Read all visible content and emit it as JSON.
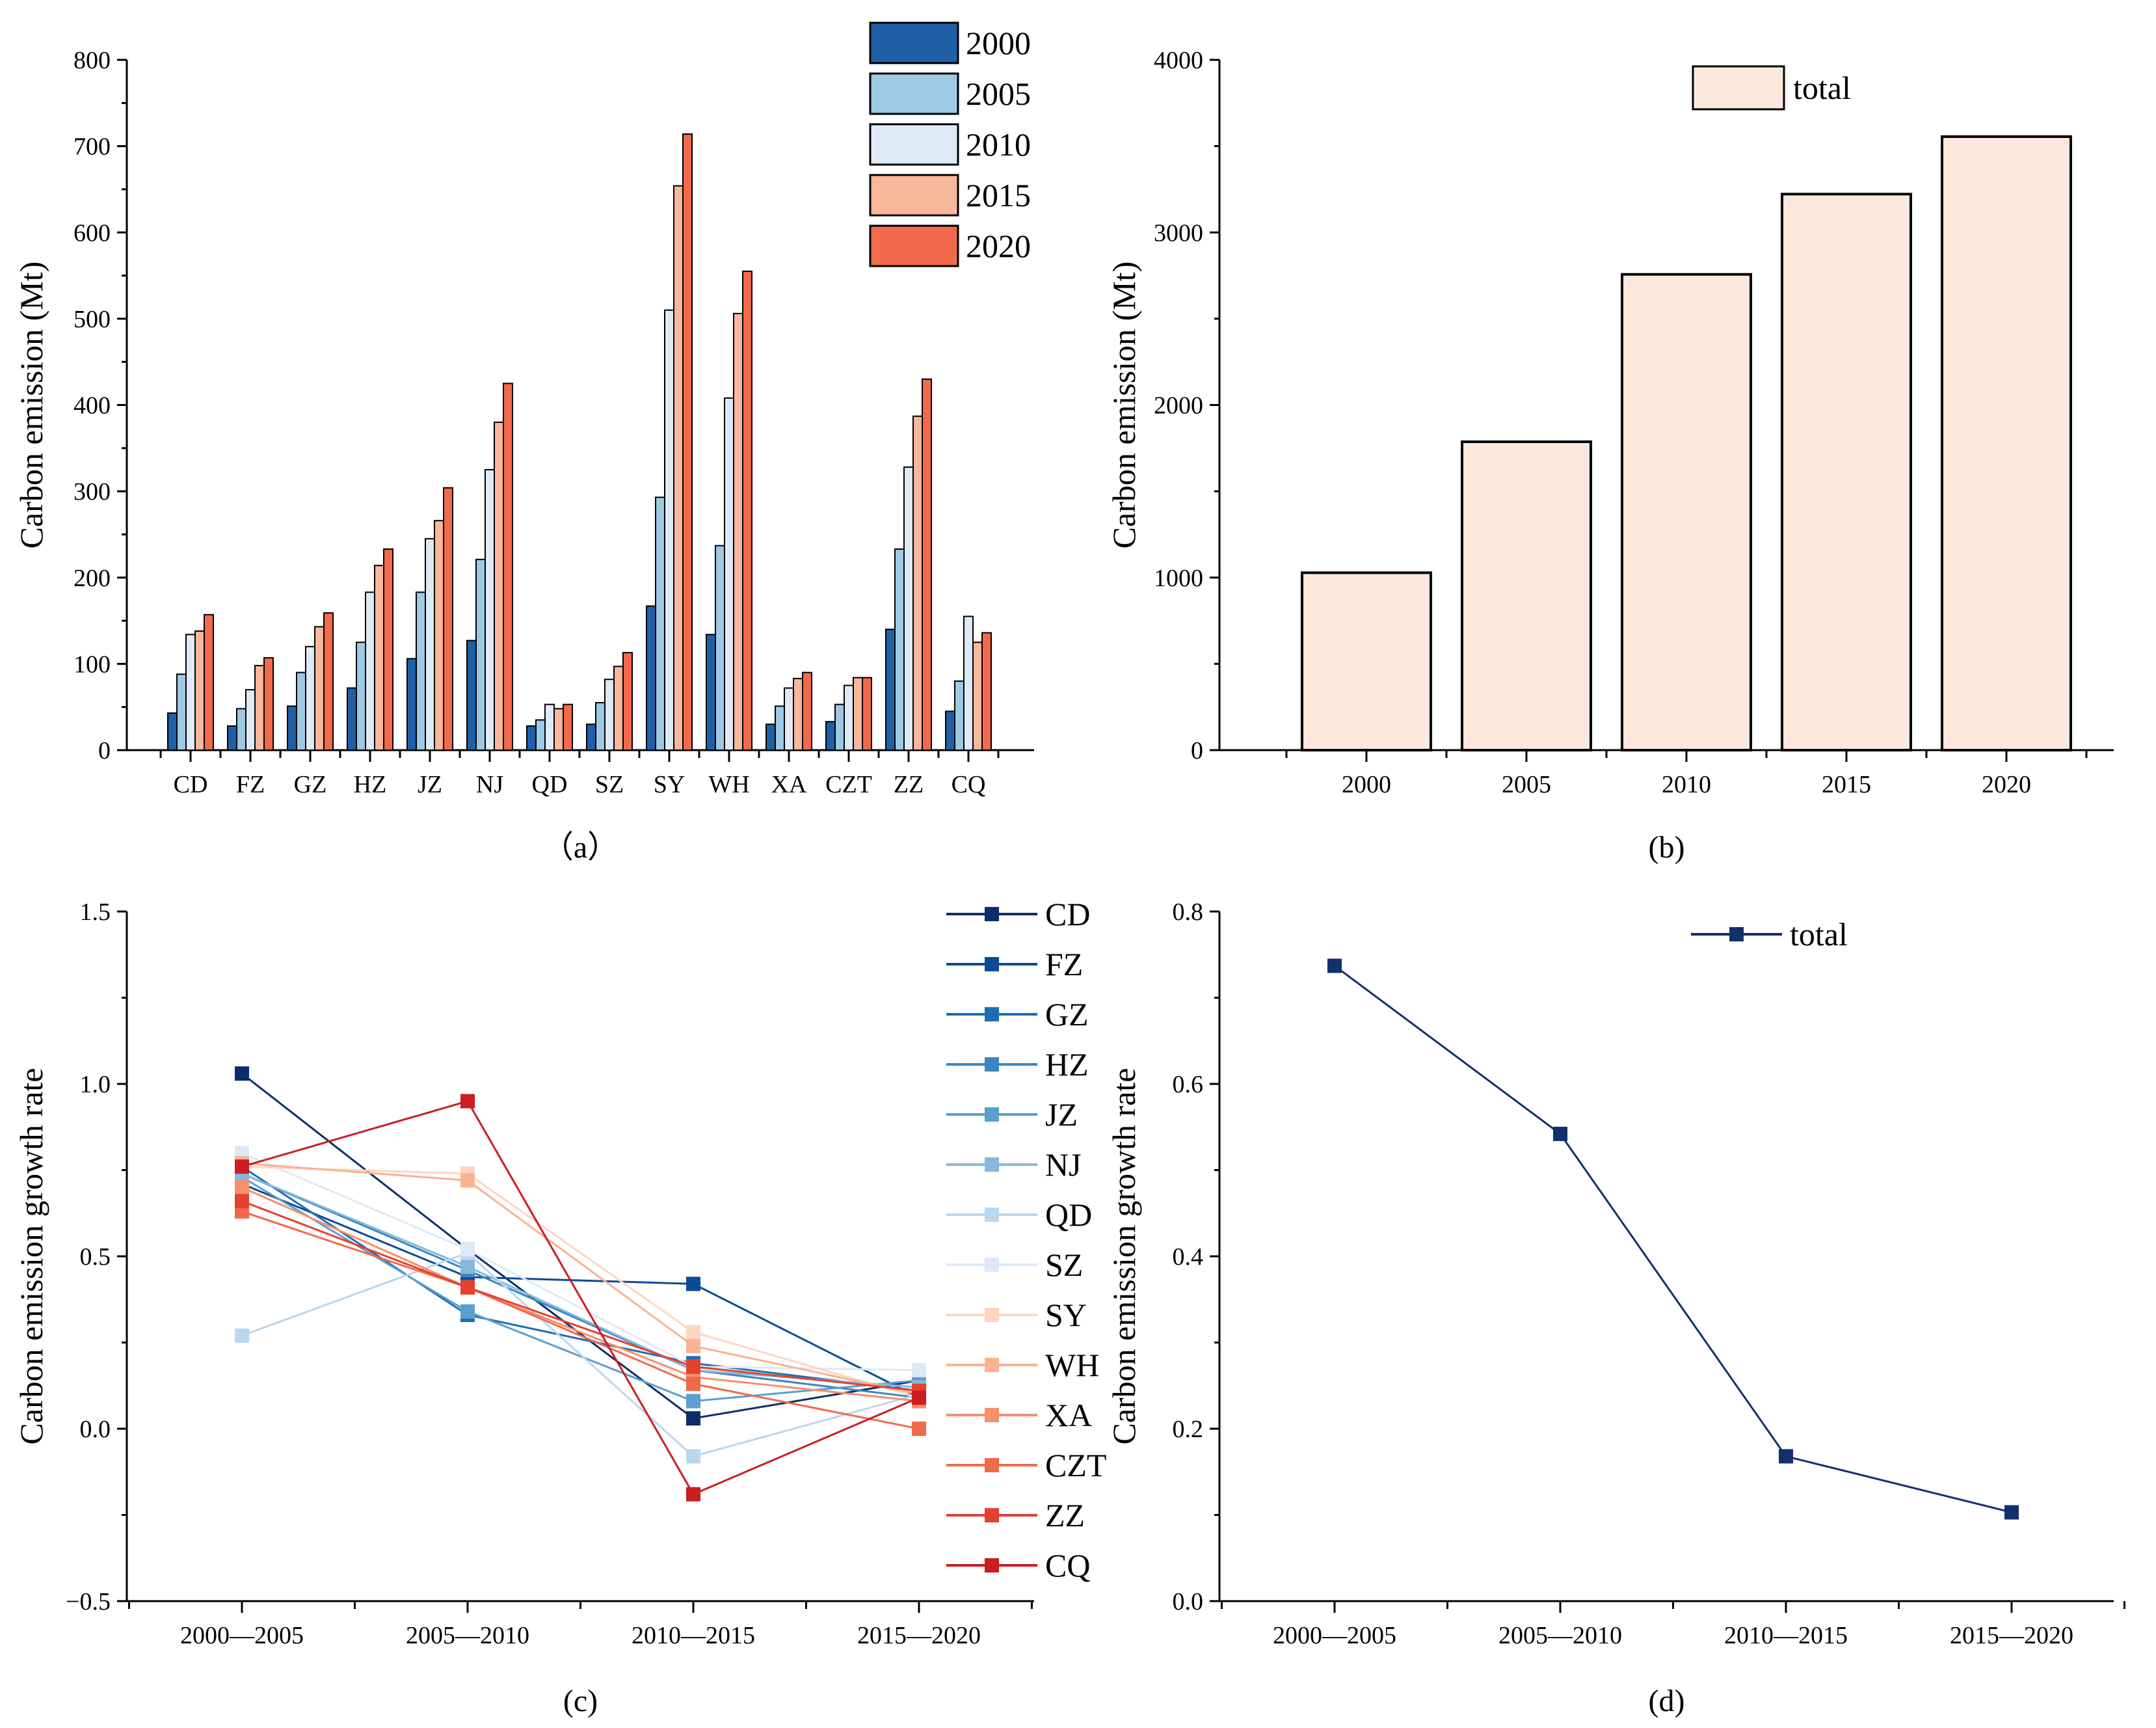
{
  "chart_data": [
    {
      "panel": "a",
      "type": "bar",
      "caption": "（a）",
      "ylabel": "Carbon emission (Mt)",
      "ylim": [
        0,
        800
      ],
      "yticks": [
        "0",
        "100",
        "200",
        "300",
        "400",
        "500",
        "600",
        "700",
        "800"
      ],
      "categories": [
        "CD",
        "FZ",
        "GZ",
        "HZ",
        "JZ",
        "NJ",
        "QD",
        "SZ",
        "SY",
        "WH",
        "XA",
        "CZT",
        "ZZ",
        "CQ"
      ],
      "series": [
        {
          "name": "2000",
          "color": "#1f5fa6",
          "values": [
            43,
            28,
            51,
            72,
            106,
            127,
            28,
            30,
            167,
            134,
            30,
            33,
            140,
            45
          ]
        },
        {
          "name": "2005",
          "color": "#9ec9e2",
          "values": [
            88,
            48,
            90,
            125,
            183,
            221,
            35,
            55,
            293,
            237,
            51,
            53,
            233,
            80
          ]
        },
        {
          "name": "2010",
          "color": "#deebf7",
          "values": [
            134,
            70,
            120,
            183,
            245,
            325,
            53,
            82,
            510,
            408,
            72,
            75,
            328,
            155
          ]
        },
        {
          "name": "2015",
          "color": "#f9b79b",
          "values": [
            138,
            98,
            143,
            214,
            266,
            380,
            48,
            97,
            654,
            506,
            83,
            84,
            387,
            125
          ]
        },
        {
          "name": "2020",
          "color": "#f26a4b",
          "values": [
            157,
            107,
            159,
            233,
            304,
            425,
            53,
            113,
            714,
            555,
            90,
            84,
            430,
            136
          ]
        }
      ]
    },
    {
      "panel": "b",
      "type": "bar",
      "caption": "(b)",
      "ylabel": "Carbon emission (Mt)",
      "ylim": [
        0,
        4000
      ],
      "yticks": [
        "0",
        "1000",
        "2000",
        "3000",
        "4000"
      ],
      "categories": [
        "2000",
        "2005",
        "2010",
        "2015",
        "2020"
      ],
      "series": [
        {
          "name": "total",
          "color": "#fde8dc",
          "values": [
            1028,
            1787,
            2757,
            3222,
            3555
          ]
        }
      ]
    },
    {
      "panel": "c",
      "type": "line",
      "caption": "(c)",
      "ylabel": "Carbon emission growth rate",
      "ylim": [
        -0.5,
        1.5
      ],
      "yticks": [
        "−0.5",
        "0.0",
        "0.5",
        "1.0",
        "1.5"
      ],
      "categories": [
        "2000—2005",
        "2005—2010",
        "2010—2015",
        "2015—2020"
      ],
      "series": [
        {
          "name": "CD",
          "color": "#0b2e6b",
          "values": [
            1.03,
            0.52,
            0.03,
            0.14
          ]
        },
        {
          "name": "FZ",
          "color": "#0d4a96",
          "values": [
            0.71,
            0.44,
            0.42,
            0.09
          ]
        },
        {
          "name": "GZ",
          "color": "#1f6db5",
          "values": [
            0.76,
            0.33,
            0.19,
            0.11
          ]
        },
        {
          "name": "HZ",
          "color": "#3a86c2",
          "values": [
            0.74,
            0.46,
            0.17,
            0.09
          ]
        },
        {
          "name": "JZ",
          "color": "#5a9fcf",
          "values": [
            0.73,
            0.34,
            0.08,
            0.14
          ]
        },
        {
          "name": "NJ",
          "color": "#84b9dc",
          "values": [
            0.74,
            0.47,
            0.17,
            0.12
          ]
        },
        {
          "name": "QD",
          "color": "#bcd6ec",
          "values": [
            0.27,
            0.51,
            -0.08,
            0.1
          ]
        },
        {
          "name": "SZ",
          "color": "#dde9f6",
          "values": [
            0.8,
            0.52,
            0.18,
            0.17
          ]
        },
        {
          "name": "SY",
          "color": "#fcd6c2",
          "values": [
            0.76,
            0.74,
            0.28,
            0.09
          ]
        },
        {
          "name": "WH",
          "color": "#f9b38f",
          "values": [
            0.77,
            0.72,
            0.24,
            0.1
          ]
        },
        {
          "name": "XA",
          "color": "#f68f6c",
          "values": [
            0.7,
            0.41,
            0.15,
            0.08
          ]
        },
        {
          "name": "CZT",
          "color": "#ef6a4b",
          "values": [
            0.63,
            0.41,
            0.13,
            0.0
          ]
        },
        {
          "name": "ZZ",
          "color": "#e5412f",
          "values": [
            0.66,
            0.41,
            0.18,
            0.11
          ]
        },
        {
          "name": "CQ",
          "color": "#cc1d22",
          "values": [
            0.76,
            0.95,
            -0.19,
            0.09
          ]
        }
      ]
    },
    {
      "panel": "d",
      "type": "line",
      "caption": "(d)",
      "ylabel": "Carbon emission growth rate",
      "ylim": [
        0.0,
        0.8
      ],
      "yticks": [
        "0.0",
        "0.2",
        "0.4",
        "0.6",
        "0.8"
      ],
      "categories": [
        "2000—2005",
        "2005—2010",
        "2010—2015",
        "2015—2020"
      ],
      "series": [
        {
          "name": "total",
          "color": "#13306b",
          "values": [
            0.737,
            0.542,
            0.168,
            0.103
          ]
        }
      ]
    }
  ]
}
